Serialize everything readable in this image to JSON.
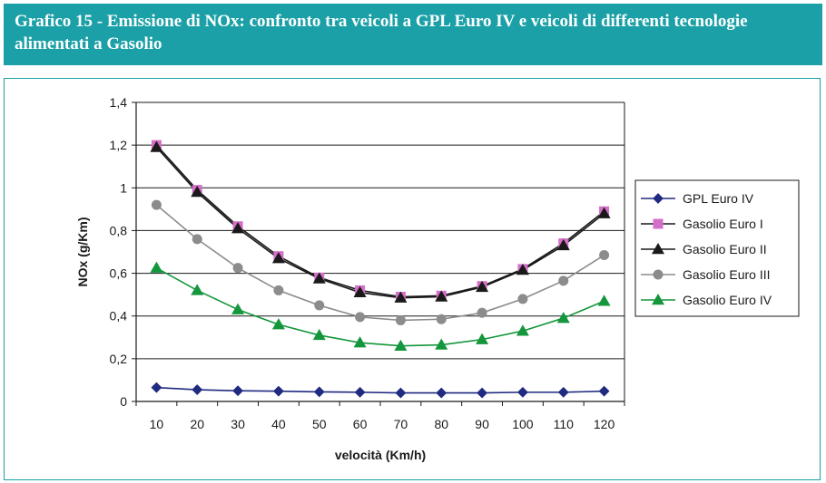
{
  "header": {
    "title": "Grafico 15 - Emissione di NOx: confronto tra veicoli a GPL Euro IV e veicoli di differenti tecnologie alimentati a Gasolio"
  },
  "chart_data": {
    "type": "line",
    "title": "",
    "xlabel": "velocità (Km/h)",
    "ylabel": "NOx (g/Km)",
    "x": [
      10,
      20,
      30,
      40,
      50,
      60,
      70,
      80,
      90,
      100,
      110,
      120
    ],
    "x_tick_labels": [
      "10",
      "20",
      "30",
      "40",
      "50",
      "60",
      "70",
      "80",
      "90",
      "100",
      "110",
      "120"
    ],
    "ylim": [
      0,
      1.4
    ],
    "y_ticks": [
      0,
      0.2,
      0.4,
      0.6,
      0.8,
      1,
      1.2,
      1.4
    ],
    "y_tick_labels": [
      "0",
      "0,2",
      "0,4",
      "0,6",
      "0,8",
      "1",
      "1,2",
      "1,4"
    ],
    "grid": "horizontal",
    "legend_position": "right",
    "series": [
      {
        "name": "GPL Euro IV",
        "color": "#1f2a80",
        "line_color": "#1f2a80",
        "marker": "diamond",
        "values": [
          0.065,
          0.055,
          0.05,
          0.048,
          0.045,
          0.043,
          0.04,
          0.04,
          0.04,
          0.043,
          0.043,
          0.048
        ]
      },
      {
        "name": "Gasolio Euro I",
        "color": "#d46ec8",
        "line_color": "#1a1a1a",
        "marker": "square",
        "values": [
          1.2,
          0.99,
          0.82,
          0.68,
          0.58,
          0.52,
          0.49,
          0.495,
          0.54,
          0.62,
          0.74,
          0.89
        ]
      },
      {
        "name": "Gasolio Euro II",
        "color": "#1a1a1a",
        "line_color": "#1a1a1a",
        "marker": "triangle",
        "values": [
          1.19,
          0.98,
          0.81,
          0.67,
          0.575,
          0.51,
          0.485,
          0.49,
          0.535,
          0.615,
          0.73,
          0.88
        ]
      },
      {
        "name": "Gasolio Euro III",
        "color": "#8c8c8c",
        "line_color": "#8c8c8c",
        "marker": "circle",
        "values": [
          0.92,
          0.76,
          0.625,
          0.52,
          0.45,
          0.395,
          0.38,
          0.385,
          0.415,
          0.48,
          0.565,
          0.685
        ]
      },
      {
        "name": "Gasolio Euro IV",
        "color": "#14963c",
        "line_color": "#14963c",
        "marker": "triangle",
        "values": [
          0.625,
          0.52,
          0.43,
          0.36,
          0.31,
          0.275,
          0.26,
          0.265,
          0.29,
          0.33,
          0.39,
          0.47
        ]
      }
    ]
  }
}
